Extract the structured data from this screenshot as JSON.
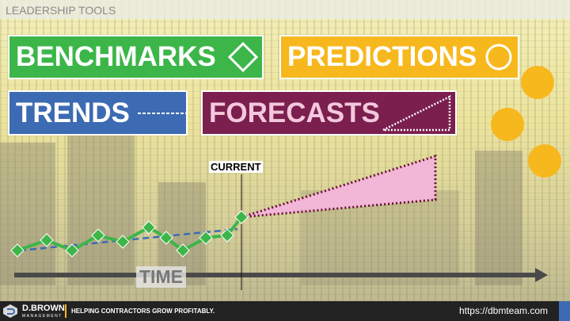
{
  "header": {
    "title": "LEADERSHIP TOOLS"
  },
  "boxes": {
    "benchmarks": {
      "label": "BENCHMARKS",
      "icon": "diamond-outline-icon",
      "color": "#3cb649"
    },
    "predictions": {
      "label": "PREDICTIONS",
      "icon": "circle-outline-icon",
      "color": "#f7b81e"
    },
    "trends": {
      "label": "TRENDS",
      "icon": "dashed-line-icon",
      "color": "#3d6bb3"
    },
    "forecasts": {
      "label": "FORECASTS",
      "icon": "dotted-triangle-icon",
      "color": "#7a1f4e"
    }
  },
  "diagram": {
    "current_label": "CURRENT",
    "axis_label": "TIME",
    "line_color": "#3cb649",
    "trend_color": "#3d6bb3",
    "forecast_fill": "#f2b6d6"
  },
  "footer": {
    "brand": "D.BROWN",
    "brand_sub": "MANAGEMENT",
    "tagline": "HELPING CONTRACTORS GROW PROFITABLY.",
    "url": "https://dbmteam.com"
  }
}
